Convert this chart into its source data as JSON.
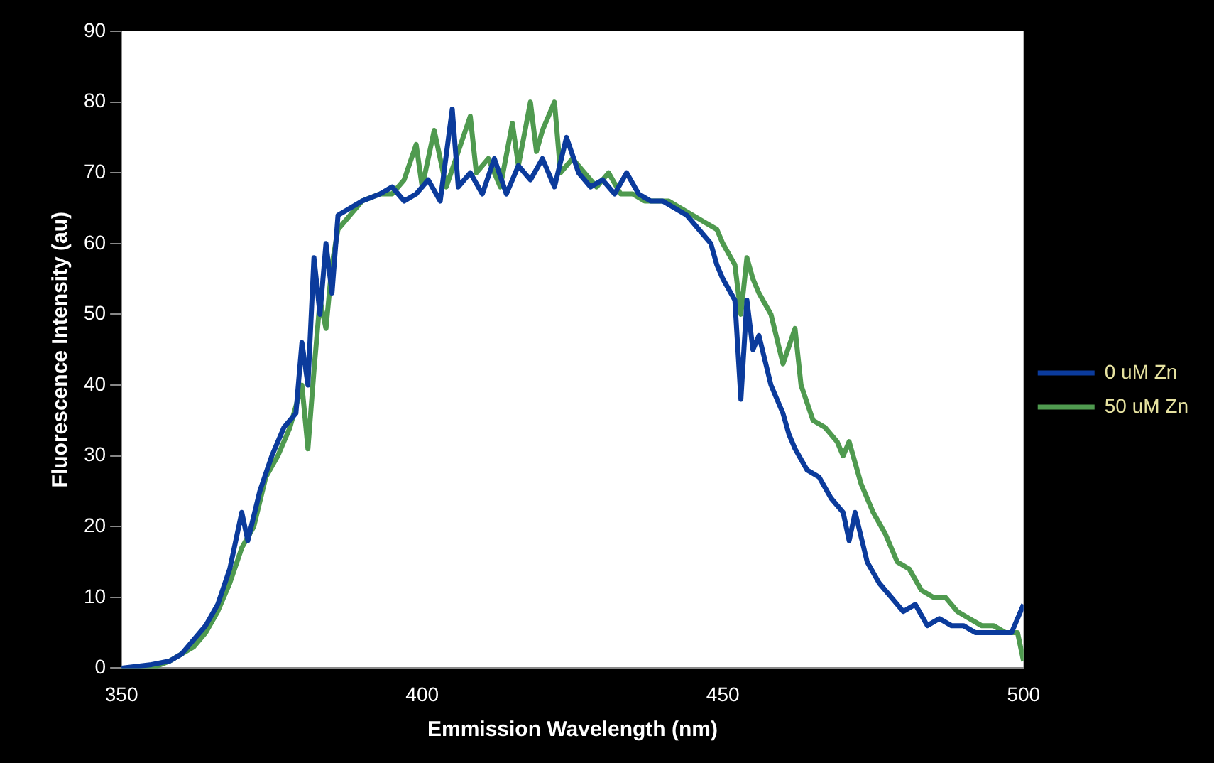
{
  "chart_data": {
    "type": "line",
    "xlabel": "Emmission Wavelength (nm)",
    "ylabel": "Fluorescence Intensity (au)",
    "xlim": [
      350,
      500
    ],
    "xticks": [
      350,
      400,
      450,
      500
    ],
    "ylim": [
      0,
      90
    ],
    "yticks": [
      0,
      10,
      20,
      30,
      40,
      50,
      60,
      70,
      80,
      90
    ],
    "grid": false,
    "legend": "right",
    "marker": "none",
    "line_style": "solid",
    "series": [
      {
        "name": "0 uM Zn",
        "color": "#0b3b9c",
        "x": [
          350,
          355,
          358,
          360,
          362,
          364,
          366,
          368,
          370,
          371,
          373,
          375,
          377,
          379,
          380,
          381,
          382,
          383,
          384,
          385,
          386,
          388,
          390,
          393,
          395,
          397,
          399,
          401,
          403,
          405,
          406,
          408,
          410,
          412,
          414,
          416,
          418,
          420,
          422,
          424,
          426,
          428,
          430,
          432,
          434,
          436,
          438,
          440,
          442,
          444,
          446,
          448,
          449,
          450,
          452,
          453,
          454,
          455,
          456,
          458,
          460,
          461,
          462,
          464,
          466,
          468,
          470,
          471,
          472,
          474,
          476,
          478,
          480,
          482,
          484,
          486,
          488,
          490,
          492,
          494,
          496,
          498,
          500
        ],
        "values": [
          0,
          0.5,
          1,
          2,
          4,
          6,
          9,
          14,
          22,
          18,
          25,
          30,
          34,
          36,
          46,
          40,
          58,
          50,
          60,
          53,
          64,
          65,
          66,
          67,
          68,
          66,
          67,
          69,
          66,
          79,
          68,
          70,
          67,
          72,
          67,
          71,
          69,
          72,
          68,
          75,
          70,
          68,
          69,
          67,
          70,
          67,
          66,
          66,
          65,
          64,
          62,
          60,
          57,
          55,
          52,
          38,
          52,
          45,
          47,
          40,
          36,
          33,
          31,
          28,
          27,
          24,
          22,
          18,
          22,
          15,
          12,
          10,
          8,
          9,
          6,
          7,
          6,
          6,
          5,
          5,
          5,
          5,
          9
        ]
      },
      {
        "name": "50 uM Zn",
        "color": "#4f9a4f",
        "x": [
          350,
          355,
          358,
          360,
          362,
          364,
          366,
          368,
          370,
          372,
          374,
          376,
          378,
          380,
          381,
          382,
          383,
          384,
          385,
          386,
          388,
          390,
          393,
          395,
          397,
          399,
          400,
          402,
          404,
          406,
          408,
          409,
          411,
          413,
          415,
          416,
          418,
          419,
          420,
          422,
          423,
          425,
          427,
          429,
          431,
          433,
          435,
          437,
          439,
          441,
          443,
          445,
          447,
          449,
          450,
          452,
          453,
          454,
          455,
          456,
          458,
          460,
          462,
          463,
          465,
          467,
          469,
          470,
          471,
          473,
          475,
          477,
          479,
          481,
          483,
          485,
          487,
          489,
          491,
          493,
          495,
          497,
          499,
          500
        ],
        "values": [
          0,
          0,
          1,
          2,
          3,
          5,
          8,
          12,
          17,
          20,
          27,
          30,
          34,
          40,
          31,
          42,
          52,
          48,
          57,
          62,
          64,
          66,
          67,
          67,
          69,
          74,
          68,
          76,
          68,
          73,
          78,
          70,
          72,
          68,
          77,
          71,
          80,
          73,
          76,
          80,
          70,
          72,
          70,
          68,
          70,
          67,
          67,
          66,
          66,
          66,
          65,
          64,
          63,
          62,
          60,
          57,
          50,
          58,
          55,
          53,
          50,
          43,
          48,
          40,
          35,
          34,
          32,
          30,
          32,
          26,
          22,
          19,
          15,
          14,
          11,
          10,
          10,
          8,
          7,
          6,
          6,
          5,
          5,
          1
        ]
      }
    ]
  }
}
